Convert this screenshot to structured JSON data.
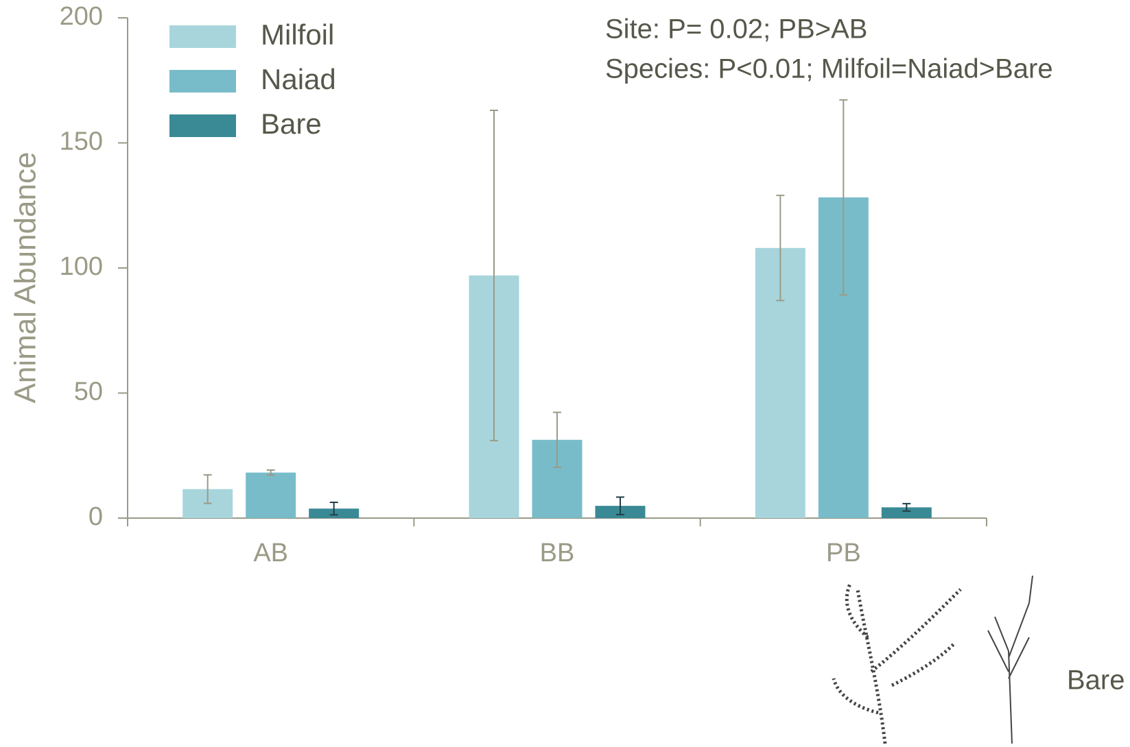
{
  "chart_data": {
    "type": "bar",
    "y_label": "Animal Abundance",
    "categories": [
      "AB",
      "BB",
      "PB"
    ],
    "series": [
      {
        "name": "Milfoil",
        "color": "#a8d5dc",
        "values": [
          11.6,
          97,
          108
        ],
        "errors": [
          5.7,
          66,
          21
        ]
      },
      {
        "name": "Naiad",
        "color": "#79bcc9",
        "values": [
          18.2,
          31.3,
          128.2
        ],
        "errors": [
          1,
          11,
          39
        ]
      },
      {
        "name": "Bare",
        "color": "#3a8a96",
        "values": [
          3.8,
          4.9,
          4.3
        ],
        "errors": [
          2.5,
          3.5,
          1.5
        ]
      }
    ],
    "ylim": [
      0,
      200
    ],
    "yticks": [
      0,
      50,
      100,
      150,
      200
    ],
    "annotations": [
      "Site: P= 0.02; PB>AB",
      "Species: P<0.01; Milfoil=Naiad>Bare"
    ],
    "image_caption": "Bare"
  }
}
